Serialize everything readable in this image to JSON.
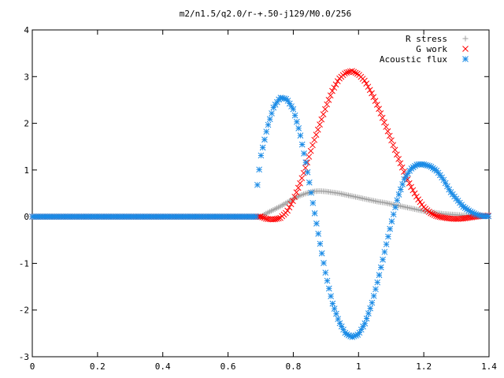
{
  "chart_data": {
    "type": "scatter",
    "title": "m2/n1.5/q2.0/r-+.50-j129/M0.0/256",
    "xlim": [
      0,
      1.4
    ],
    "ylim": [
      -3,
      4
    ],
    "x_ticks": [
      0,
      0.2,
      0.4,
      0.6,
      0.8,
      1,
      1.2,
      1.4
    ],
    "x_tick_labels": [
      "0",
      "0.2",
      "0.4",
      "0.6",
      "0.8",
      "1",
      "1.2",
      "1.4"
    ],
    "y_ticks": [
      -3,
      -2,
      -1,
      0,
      1,
      2,
      3,
      4
    ],
    "y_tick_labels": [
      "-3",
      "-2",
      "-1",
      "0",
      "1",
      "2",
      "3",
      "4"
    ],
    "legend_position": "top-right",
    "series": [
      {
        "name": "R stress",
        "marker": "plus",
        "color": "#a0a0a0",
        "x": [
          0.7,
          0.72,
          0.74,
          0.76,
          0.78,
          0.8,
          0.82,
          0.84,
          0.86,
          0.88,
          0.9,
          0.92,
          0.94,
          0.96,
          0.98,
          1.0,
          1.02,
          1.04,
          1.06,
          1.08,
          1.1,
          1.12,
          1.14,
          1.16,
          1.18,
          1.2,
          1.22,
          1.24,
          1.26,
          1.28,
          1.3,
          1.32,
          1.34,
          1.36,
          1.38
        ],
        "y": [
          0.0,
          0.08,
          0.15,
          0.22,
          0.3,
          0.38,
          0.45,
          0.5,
          0.54,
          0.55,
          0.54,
          0.52,
          0.5,
          0.47,
          0.44,
          0.41,
          0.38,
          0.35,
          0.32,
          0.3,
          0.27,
          0.24,
          0.21,
          0.18,
          0.15,
          0.12,
          0.1,
          0.08,
          0.06,
          0.05,
          0.04,
          0.03,
          0.02,
          0.01,
          0.01
        ]
      },
      {
        "name": "G work",
        "marker": "cross",
        "color": "#ff0000",
        "x": [
          0.7,
          0.72,
          0.74,
          0.76,
          0.78,
          0.8,
          0.82,
          0.84,
          0.86,
          0.88,
          0.9,
          0.92,
          0.94,
          0.96,
          0.98,
          1.0,
          1.02,
          1.04,
          1.06,
          1.08,
          1.1,
          1.12,
          1.14,
          1.16,
          1.18,
          1.2,
          1.22,
          1.24,
          1.26,
          1.28,
          1.3,
          1.32,
          1.34,
          1.36,
          1.38
        ],
        "y": [
          0.0,
          -0.05,
          -0.06,
          -0.03,
          0.1,
          0.35,
          0.7,
          1.1,
          1.55,
          1.95,
          2.35,
          2.7,
          2.95,
          3.08,
          3.12,
          3.05,
          2.9,
          2.65,
          2.35,
          2.0,
          1.65,
          1.28,
          0.95,
          0.65,
          0.4,
          0.2,
          0.08,
          0.01,
          -0.02,
          -0.04,
          -0.05,
          -0.04,
          -0.02,
          0.0,
          0.02
        ]
      },
      {
        "name": "Acoustic flux",
        "marker": "star",
        "color": "#1a8be6",
        "x": [
          0.69,
          0.7,
          0.72,
          0.74,
          0.76,
          0.78,
          0.8,
          0.82,
          0.84,
          0.86,
          0.88,
          0.9,
          0.92,
          0.94,
          0.96,
          0.98,
          1.0,
          1.02,
          1.04,
          1.06,
          1.08,
          1.1,
          1.12,
          1.14,
          1.16,
          1.18,
          1.2,
          1.22,
          1.24,
          1.26,
          1.28,
          1.3,
          1.32,
          1.34,
          1.36,
          1.38
        ],
        "y": [
          0.68,
          1.28,
          1.9,
          2.35,
          2.55,
          2.52,
          2.3,
          1.8,
          1.1,
          0.3,
          -0.5,
          -1.25,
          -1.85,
          -2.25,
          -2.5,
          -2.58,
          -2.52,
          -2.28,
          -1.88,
          -1.35,
          -0.75,
          -0.15,
          0.4,
          0.8,
          1.02,
          1.12,
          1.12,
          1.08,
          0.98,
          0.8,
          0.55,
          0.38,
          0.22,
          0.12,
          0.05,
          0.01
        ]
      }
    ]
  }
}
